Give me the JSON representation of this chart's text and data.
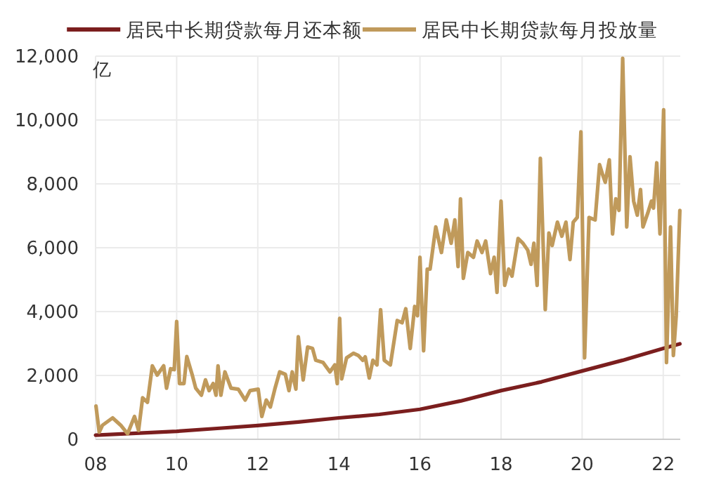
{
  "chart_data": {
    "type": "line",
    "ylabel": "亿",
    "xlim": [
      2008,
      2022.42
    ],
    "ylim": [
      0,
      12000
    ],
    "xticks": [
      {
        "value": 2008,
        "label": "08"
      },
      {
        "value": 2010,
        "label": "10"
      },
      {
        "value": 2012,
        "label": "12"
      },
      {
        "value": 2014,
        "label": "14"
      },
      {
        "value": 2016,
        "label": "16"
      },
      {
        "value": 2018,
        "label": "18"
      },
      {
        "value": 2020,
        "label": "20"
      },
      {
        "value": 2022,
        "label": "22"
      }
    ],
    "yticks": [
      {
        "value": 0,
        "label": "0"
      },
      {
        "value": 2000,
        "label": "2,000"
      },
      {
        "value": 4000,
        "label": "4,000"
      },
      {
        "value": 6000,
        "label": "6,000"
      },
      {
        "value": 8000,
        "label": "8,000"
      },
      {
        "value": 10000,
        "label": "10,000"
      },
      {
        "value": 12000,
        "label": "12,000"
      }
    ],
    "grid": true,
    "legend": "top",
    "marker": "none",
    "line_style": "solid",
    "series": [
      {
        "name": "居民中长期贷款每月还本额",
        "color": "#7b1e1e",
        "x": [
          2008,
          2009,
          2010,
          2011,
          2012,
          2013,
          2014,
          2015,
          2016,
          2017,
          2018,
          2019,
          2020,
          2021,
          2022,
          2022.41
        ],
        "values": [
          130,
          190,
          250,
          340,
          430,
          540,
          670,
          780,
          940,
          1200,
          1525,
          1800,
          2140,
          2475,
          2845,
          2990
        ]
      },
      {
        "name": "居民中长期贷款每月投放量",
        "color": "#c09a5b",
        "x": [
          2008.01,
          2008.09,
          2008.17,
          2008.42,
          2008.62,
          2008.79,
          2008.96,
          2009.06,
          2009.16,
          2009.28,
          2009.4,
          2009.52,
          2009.68,
          2009.75,
          2009.85,
          2009.94,
          2010,
          2010.07,
          2010.18,
          2010.25,
          2010.38,
          2010.47,
          2010.61,
          2010.71,
          2010.8,
          2010.9,
          2010.97,
          2011.02,
          2011.09,
          2011.19,
          2011.34,
          2011.52,
          2011.69,
          2011.81,
          2012.01,
          2012.1,
          2012.21,
          2012.31,
          2012.42,
          2012.54,
          2012.68,
          2012.77,
          2012.85,
          2012.94,
          2013,
          2013.12,
          2013.23,
          2013.35,
          2013.43,
          2013.61,
          2013.78,
          2013.9,
          2013.96,
          2014.02,
          2014.07,
          2014.19,
          2014.36,
          2014.48,
          2014.59,
          2014.65,
          2014.75,
          2014.84,
          2014.94,
          2015.03,
          2015.12,
          2015.27,
          2015.44,
          2015.56,
          2015.65,
          2015.76,
          2015.87,
          2015.94,
          2016,
          2016.09,
          2016.18,
          2016.25,
          2016.39,
          2016.53,
          2016.65,
          2016.77,
          2016.86,
          2016.94,
          2017,
          2017.07,
          2017.18,
          2017.32,
          2017.41,
          2017.53,
          2017.62,
          2017.74,
          2017.83,
          2017.9,
          2018,
          2018.09,
          2018.19,
          2018.27,
          2018.42,
          2018.54,
          2018.66,
          2018.74,
          2018.81,
          2018.89,
          2018.97,
          2019.09,
          2019.18,
          2019.26,
          2019.39,
          2019.5,
          2019.6,
          2019.7,
          2019.78,
          2019.88,
          2019.97,
          2020.06,
          2020.17,
          2020.32,
          2020.43,
          2020.51,
          2020.57,
          2020.67,
          2020.75,
          2020.83,
          2020.91,
          2021,
          2021.1,
          2021.18,
          2021.27,
          2021.36,
          2021.44,
          2021.5,
          2021.62,
          2021.71,
          2021.76,
          2021.84,
          2021.92,
          2022.01,
          2022.08,
          2022.18,
          2022.25,
          2022.32,
          2022.41
        ],
        "values": [
          1040,
          220,
          440,
          670,
          440,
          175,
          715,
          277,
          1300,
          1160,
          2300,
          2010,
          2300,
          1600,
          2210,
          2180,
          3690,
          1745,
          1745,
          2590,
          2035,
          1600,
          1380,
          1860,
          1525,
          1745,
          1380,
          2300,
          1380,
          2110,
          1600,
          1570,
          1230,
          1525,
          1570,
          715,
          1230,
          1010,
          1570,
          2110,
          2035,
          1525,
          2110,
          1570,
          3210,
          1860,
          2890,
          2845,
          2475,
          2405,
          2110,
          2330,
          1745,
          3790,
          1890,
          2550,
          2695,
          2625,
          2475,
          2580,
          1920,
          2475,
          2330,
          4060,
          2475,
          2330,
          3720,
          3650,
          4090,
          2845,
          4160,
          3870,
          5700,
          2770,
          5330,
          5330,
          6650,
          5850,
          6870,
          6140,
          6870,
          5410,
          7530,
          5040,
          5850,
          5700,
          6210,
          5850,
          6210,
          5190,
          5700,
          4600,
          7460,
          4820,
          5330,
          5110,
          6290,
          6140,
          5920,
          5480,
          6140,
          4820,
          8800,
          4060,
          6460,
          6070,
          6800,
          6360,
          6800,
          5630,
          6800,
          6950,
          9630,
          2550,
          6950,
          6870,
          8600,
          8270,
          8050,
          8750,
          6430,
          7530,
          7170,
          11930,
          6650,
          8850,
          7460,
          7020,
          7820,
          6650,
          7090,
          7460,
          7240,
          8660,
          6430,
          10320,
          2405,
          6650,
          2625,
          3870,
          7170
        ]
      }
    ]
  }
}
